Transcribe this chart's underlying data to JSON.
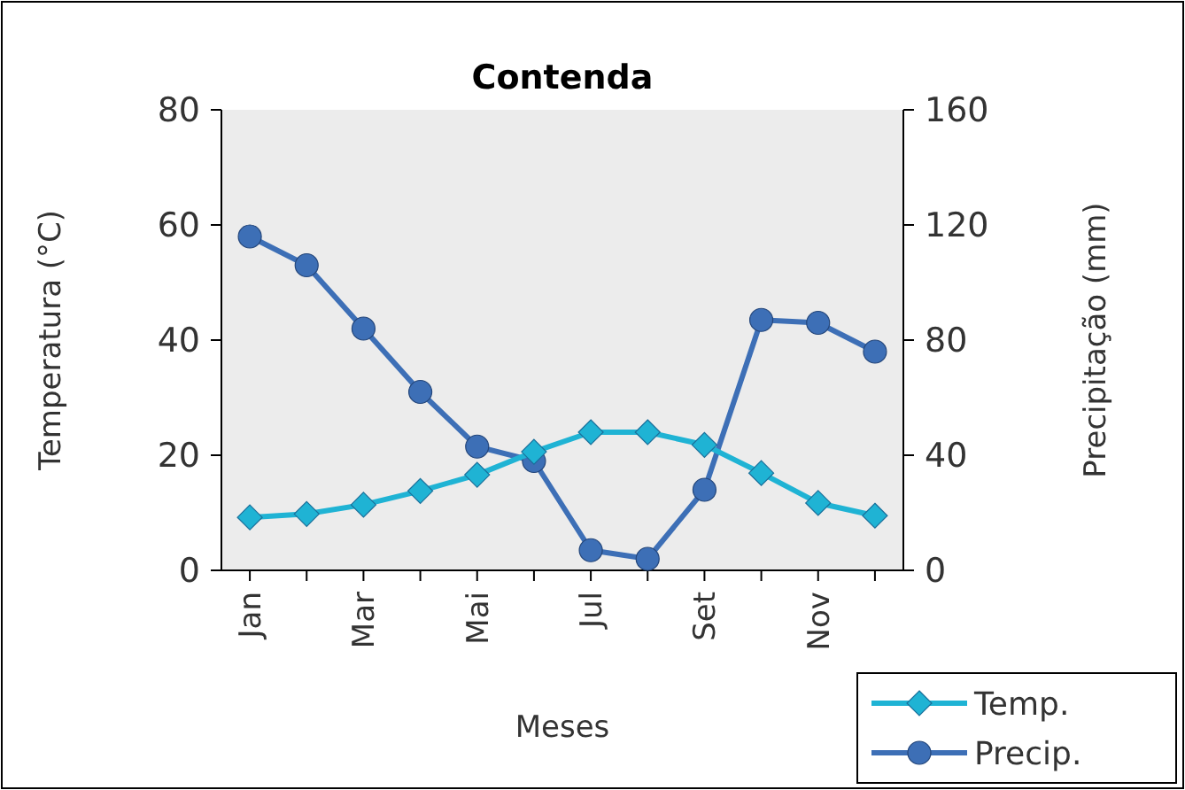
{
  "chart_data": {
    "type": "line",
    "title": "Contenda",
    "xlabel": "Meses",
    "ylabel": "Temperatura (°C)",
    "y2label": "Precipitação (mm)",
    "categories": [
      "Jan",
      null,
      "Mar",
      null,
      "Mai",
      null,
      "Jul",
      null,
      "Set",
      null,
      "Nov",
      null
    ],
    "ylim": [
      0,
      80
    ],
    "yticks": [
      0,
      20,
      40,
      60,
      80
    ],
    "y2lim": [
      0,
      160
    ],
    "y2ticks": [
      0,
      40,
      80,
      120,
      160
    ],
    "grid": false,
    "legend": "bottom right",
    "line_style": "solid",
    "series": [
      {
        "name": "Temp.",
        "color": "#1fb3d4",
        "marker": "diamond",
        "values": [
          9.2,
          9.8,
          11.4,
          13.8,
          16.6,
          20.6,
          24,
          24,
          21.8,
          16.9,
          11.7,
          9.5
        ]
      },
      {
        "name": "Precip.",
        "color": "#3d6fb6",
        "marker": "circle",
        "axis": "y2",
        "values": [
          116,
          106,
          84,
          62,
          43,
          38,
          7,
          4,
          28,
          87,
          86,
          76
        ]
      }
    ]
  }
}
